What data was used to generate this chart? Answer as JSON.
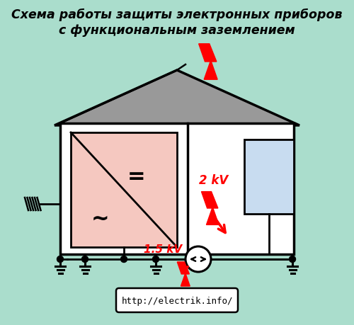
{
  "bg_color": "#aaddcc",
  "title_line1": "Схема работы защиты электронных приборов",
  "title_line2": "с функциональным заземлением",
  "title_fontsize": 12.5,
  "url_text": "http://electrik.info/",
  "label_2kv": "2 kV",
  "label_15kv": "1.5 kV",
  "house_wall_color": "#ffffff",
  "house_roof_color": "#999999",
  "house_outline_color": "#000000",
  "left_panel_color": "#f5c8c0",
  "right_room_color": "#fffff0",
  "device_color": "#c8dcf0",
  "wire_color": "#000000",
  "lightning_color": "#ff0000",
  "ground_color": "#000000"
}
